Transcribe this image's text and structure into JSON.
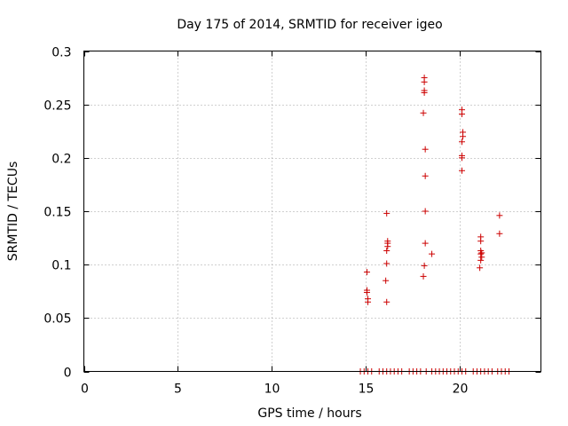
{
  "chart_data": {
    "type": "scatter",
    "title": "Day 175 of 2014, SRMTID for receiver igeo",
    "xlabel": "GPS time / hours",
    "ylabel": "SRMTID / TECUs",
    "xlim": [
      0,
      24.3
    ],
    "ylim": [
      0,
      0.3
    ],
    "x_ticks": [
      0,
      5,
      10,
      15,
      20
    ],
    "x_tick_labels": [
      "0",
      "5",
      "10",
      "15",
      "20"
    ],
    "y_ticks": [
      0,
      0.05,
      0.1,
      0.15,
      0.2,
      0.25,
      0.3
    ],
    "y_tick_labels": [
      "0",
      "0.05",
      "0.1",
      "0.15",
      "0.2",
      "0.25",
      "0.3"
    ],
    "grid": true,
    "marker": "+",
    "marker_color": "#cc0000",
    "series": [
      {
        "name": "SRMTID",
        "points": [
          [
            15.05,
            0.093
          ],
          [
            15.05,
            0.076
          ],
          [
            15.05,
            0.074
          ],
          [
            15.1,
            0.068
          ],
          [
            15.1,
            0.065
          ],
          [
            16.1,
            0.148
          ],
          [
            16.15,
            0.122
          ],
          [
            16.15,
            0.12
          ],
          [
            16.15,
            0.117
          ],
          [
            16.1,
            0.113
          ],
          [
            16.1,
            0.101
          ],
          [
            16.05,
            0.085
          ],
          [
            16.1,
            0.065
          ],
          [
            18.1,
            0.275
          ],
          [
            18.1,
            0.271
          ],
          [
            18.1,
            0.263
          ],
          [
            18.1,
            0.261
          ],
          [
            18.05,
            0.242
          ],
          [
            18.15,
            0.208
          ],
          [
            18.15,
            0.183
          ],
          [
            18.15,
            0.15
          ],
          [
            18.15,
            0.12
          ],
          [
            18.1,
            0.099
          ],
          [
            18.05,
            0.089
          ],
          [
            18.5,
            0.11
          ],
          [
            20.1,
            0.245
          ],
          [
            20.1,
            0.241
          ],
          [
            20.15,
            0.224
          ],
          [
            20.15,
            0.22
          ],
          [
            20.1,
            0.215
          ],
          [
            20.1,
            0.202
          ],
          [
            20.1,
            0.2
          ],
          [
            20.1,
            0.188
          ],
          [
            21.1,
            0.126
          ],
          [
            21.1,
            0.122
          ],
          [
            21.1,
            0.113
          ],
          [
            21.15,
            0.111
          ],
          [
            21.1,
            0.11
          ],
          [
            21.15,
            0.107
          ],
          [
            21.1,
            0.104
          ],
          [
            21.05,
            0.097
          ],
          [
            22.1,
            0.146
          ],
          [
            22.1,
            0.129
          ],
          [
            14.7,
            0
          ],
          [
            14.9,
            0
          ],
          [
            15.1,
            0
          ],
          [
            15.3,
            0
          ],
          [
            15.7,
            0
          ],
          [
            15.9,
            0
          ],
          [
            16.1,
            0
          ],
          [
            16.3,
            0
          ],
          [
            16.5,
            0
          ],
          [
            16.7,
            0
          ],
          [
            16.9,
            0
          ],
          [
            17.3,
            0
          ],
          [
            17.5,
            0
          ],
          [
            17.7,
            0
          ],
          [
            17.9,
            0
          ],
          [
            18.2,
            0
          ],
          [
            18.5,
            0
          ],
          [
            18.7,
            0
          ],
          [
            18.9,
            0
          ],
          [
            19.1,
            0
          ],
          [
            19.3,
            0
          ],
          [
            19.5,
            0
          ],
          [
            19.7,
            0
          ],
          [
            19.9,
            0
          ],
          [
            20.1,
            0
          ],
          [
            20.3,
            0
          ],
          [
            20.7,
            0
          ],
          [
            20.9,
            0
          ],
          [
            21.1,
            0
          ],
          [
            21.3,
            0
          ],
          [
            21.5,
            0
          ],
          [
            21.7,
            0
          ],
          [
            22.0,
            0
          ],
          [
            22.2,
            0
          ],
          [
            22.4,
            0
          ],
          [
            22.6,
            0
          ]
        ]
      }
    ]
  }
}
